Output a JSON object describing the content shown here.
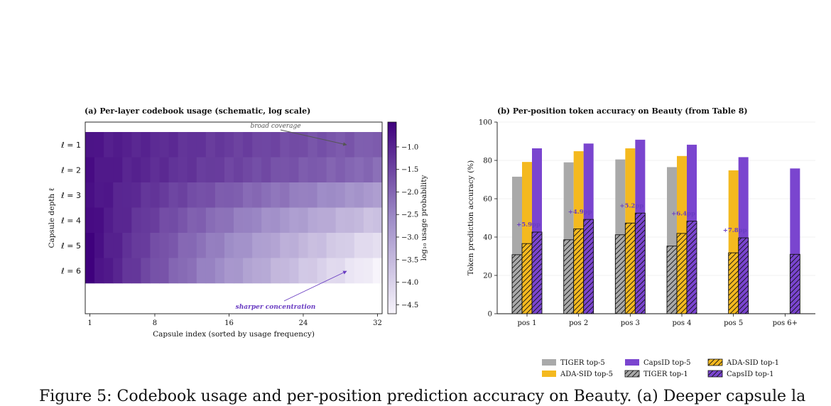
{
  "caption": "Figure 5: Codebook usage and per-position prediction accuracy on Beauty. (a) Deeper capsule la",
  "chart_data": [
    {
      "type": "heatmap",
      "title": "(a) Per-layer codebook usage (schematic, log scale)",
      "xlabel": "Capsule index (sorted by usage frequency)",
      "ylabel": "Capsule depth ℓ",
      "x_ticks": [
        "1",
        "8",
        "16",
        "24",
        "32"
      ],
      "rows": [
        "ℓ = 1",
        "ℓ = 2",
        "ℓ = 3",
        "ℓ = 4",
        "ℓ = 5",
        "ℓ = 6"
      ],
      "columns": 32,
      "row_start": [
        -0.75,
        -0.7,
        -0.65,
        -0.55,
        -0.5,
        -0.45
      ],
      "row_end": [
        -1.9,
        -2.1,
        -2.9,
        -3.7,
        -4.3,
        -4.7
      ],
      "colorbar": {
        "label": "log₁₀ usage probability",
        "min": -4.7,
        "max": -0.45,
        "ticks": [
          "−1.0",
          "−1.5",
          "−2.0",
          "−2.5",
          "−3.0",
          "−3.5",
          "−4.0",
          "−4.5"
        ],
        "low_color": "#f7f4fb",
        "high_color": "#3f007d"
      },
      "annotations": [
        {
          "text": "broad coverage",
          "color": "#555555"
        },
        {
          "text": "sharper concentration",
          "color": "#6a3dc2"
        }
      ]
    },
    {
      "type": "bar",
      "title": "(b) Per-position token accuracy on Beauty (from Table 8)",
      "ylabel": "Token prediction accuracy (%)",
      "ylim": [
        0,
        100
      ],
      "y_ticks": [
        "0",
        "20",
        "40",
        "60",
        "80",
        "100"
      ],
      "categories": [
        "pos 1",
        "pos 2",
        "pos 3",
        "pos 4",
        "pos 5",
        "pos 6+"
      ],
      "series": [
        {
          "name": "TIGER top-5",
          "key": "tiger",
          "values": [
            71.5,
            79,
            80.5,
            76.5,
            null,
            null
          ]
        },
        {
          "name": "ADA-SID top-5",
          "key": "ada",
          "values": [
            79.2,
            84.8,
            86.3,
            82.3,
            74.8,
            null
          ]
        },
        {
          "name": "CapsID top-5",
          "key": "caps",
          "values": [
            86.3,
            88.8,
            90.8,
            88.2,
            81.7,
            75.8
          ]
        },
        {
          "name": "TIGER top-1",
          "key": "tiger",
          "hatched": true,
          "values": [
            30.8,
            38.6,
            41.2,
            35.3,
            null,
            null
          ]
        },
        {
          "name": "ADA-SID top-1",
          "key": "ada",
          "hatched": true,
          "values": [
            36.6,
            44.3,
            47.3,
            41.9,
            31.8,
            null
          ]
        },
        {
          "name": "CapsID top-1",
          "key": "caps",
          "hatched": true,
          "values": [
            42.6,
            49.2,
            52.5,
            48.3,
            39.6,
            31.0
          ]
        }
      ],
      "data_labels": [
        "+5.9pp",
        "+4.9pp",
        "+5.2pp",
        "+6.4pp",
        "+7.8pp"
      ],
      "colors": {
        "tiger": "#a9a9a9",
        "ada": "#f4b91f",
        "caps": "#7a45cf"
      },
      "legend_placement": "bottom-center"
    }
  ]
}
